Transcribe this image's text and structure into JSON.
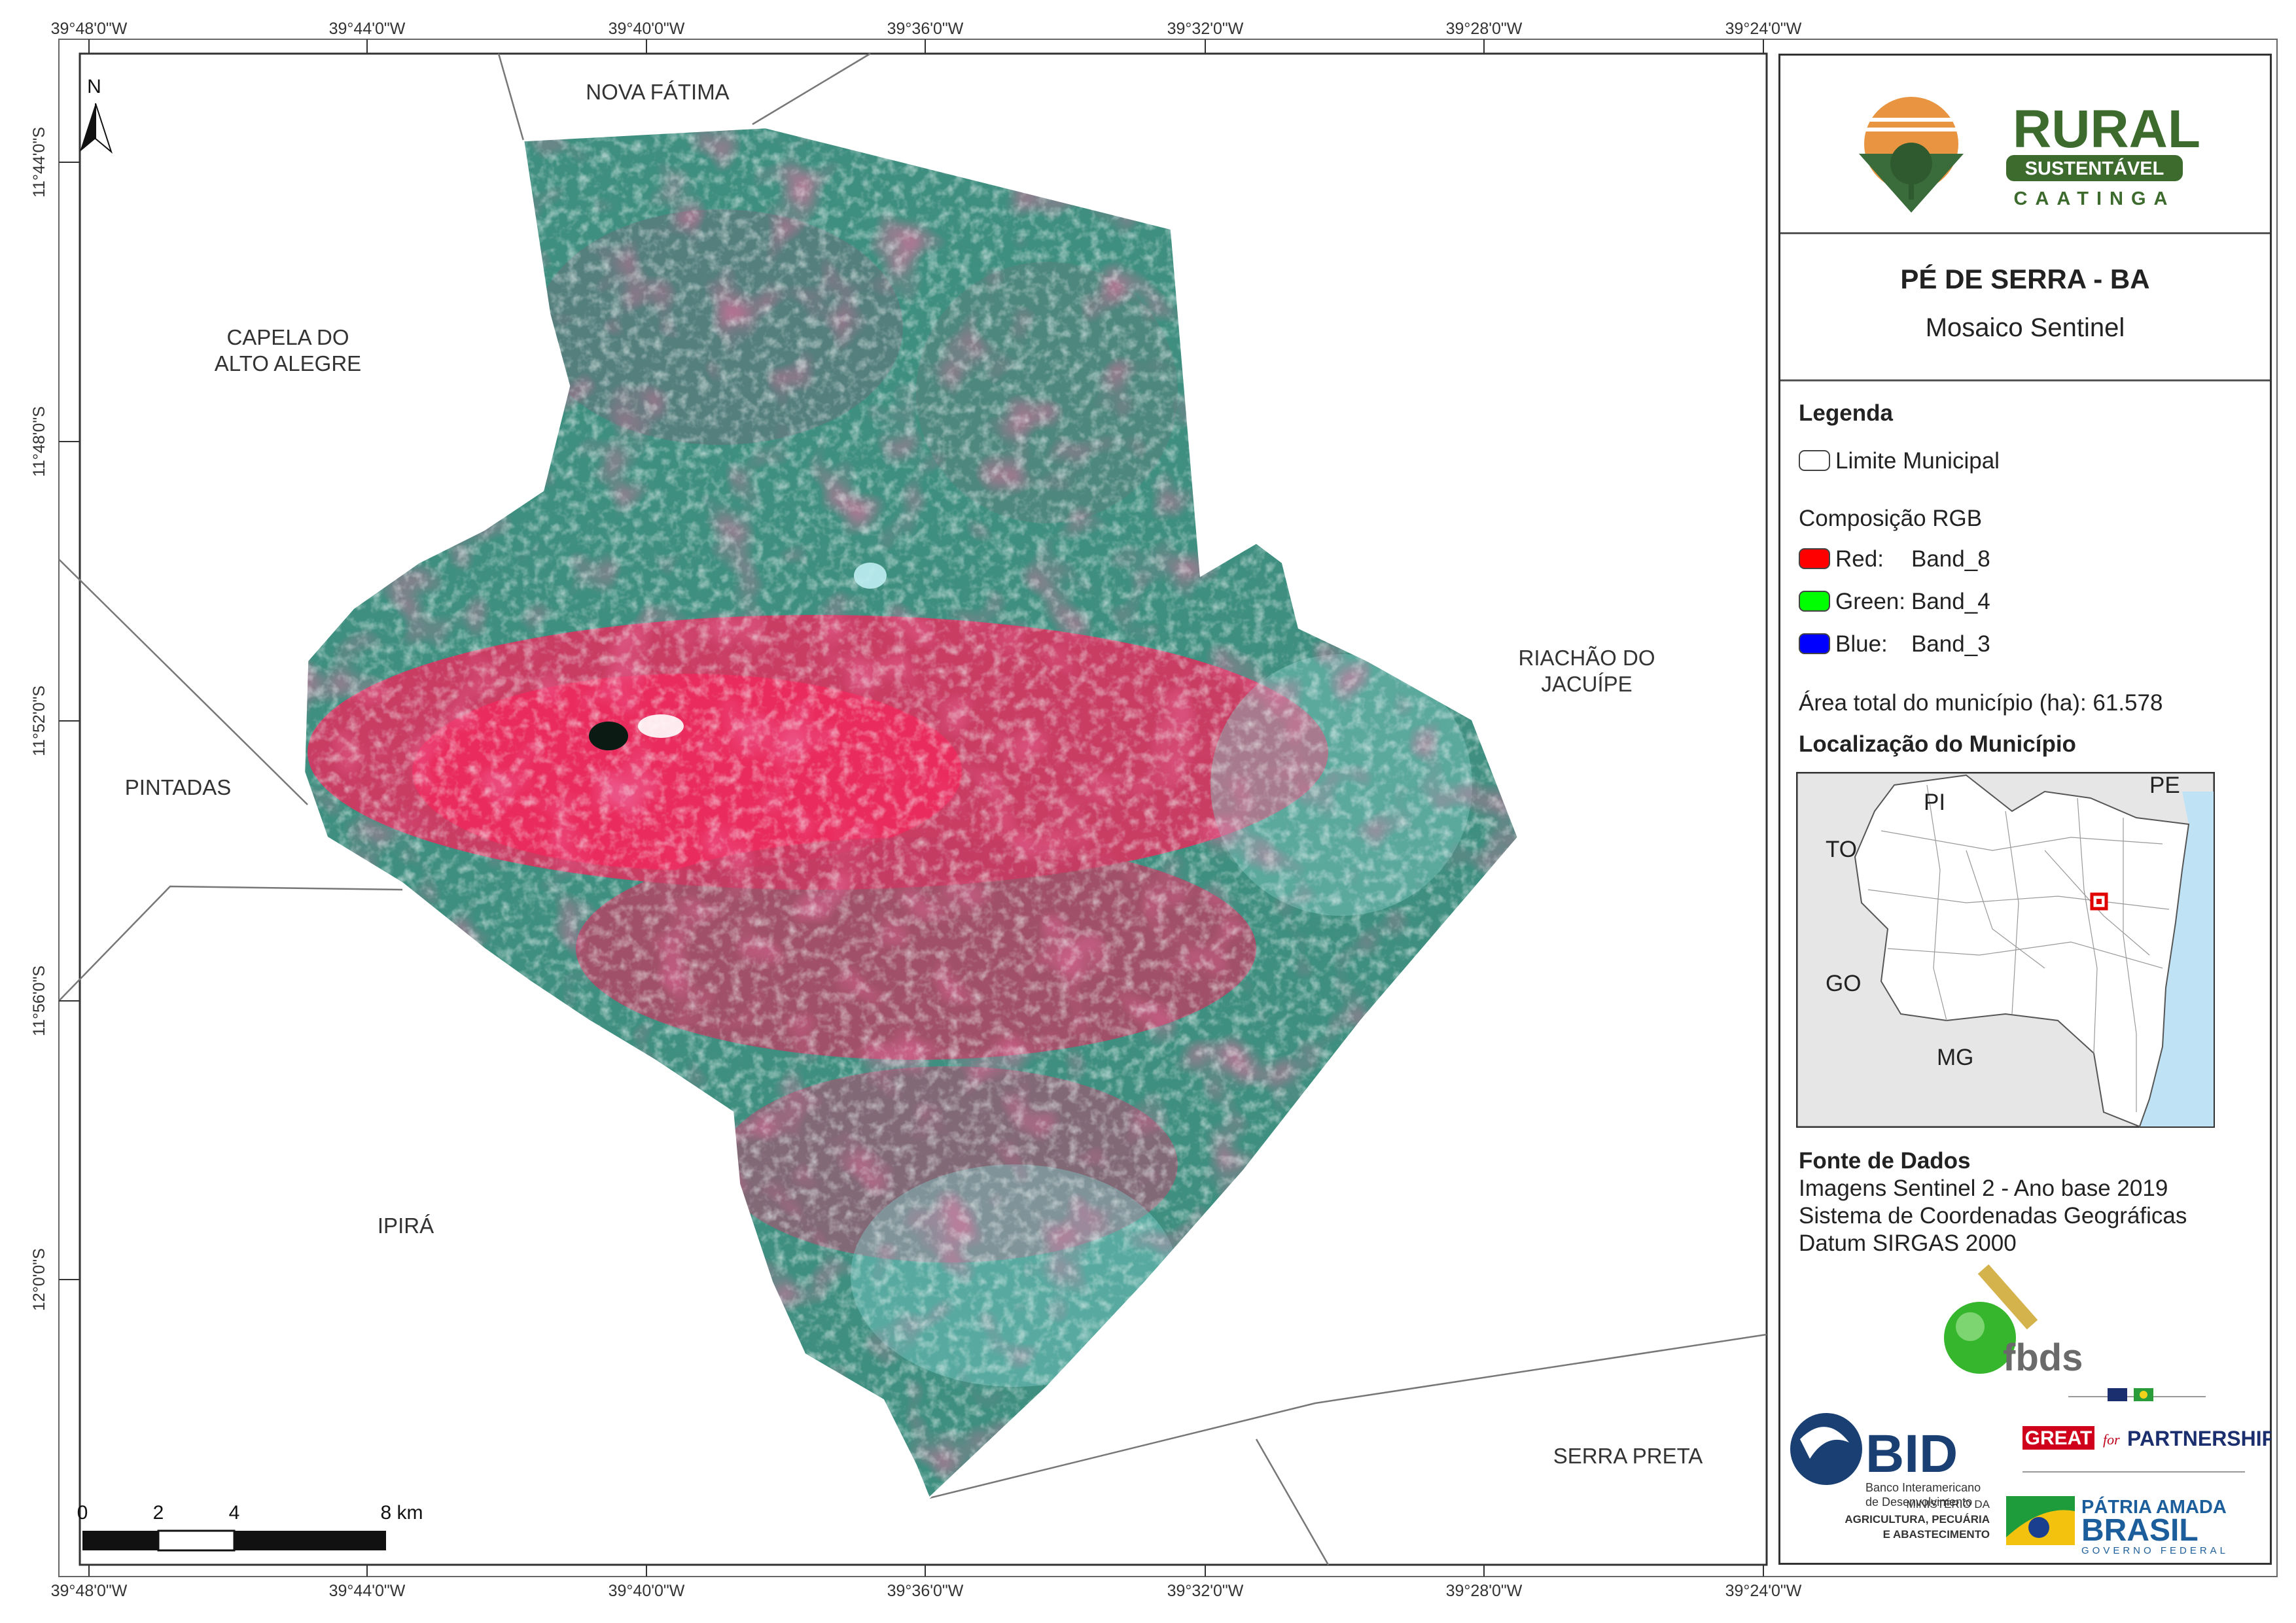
{
  "lon_ticks": [
    "39°48'0\"W",
    "39°44'0\"W",
    "39°40'0\"W",
    "39°36'0\"W",
    "39°32'0\"W",
    "39°28'0\"W",
    "39°24'0\"W"
  ],
  "lat_ticks": [
    "11°44'0\"S",
    "11°48'0\"S",
    "11°52'0\"S",
    "11°56'0\"S",
    "12°0'0\"S"
  ],
  "north_label": "N",
  "neighbors": {
    "nova_fatima": "NOVA FÁTIMA",
    "capela_1": "CAPELA DO",
    "capela_2": "ALTO ALEGRE",
    "riachao_1": "RIACHÃO DO",
    "riachao_2": "JACUÍPE",
    "pintadas": "PINTADAS",
    "ipira": "IPIRÁ",
    "serra_preta": "SERRA PRETA"
  },
  "scale_bar": {
    "labels": [
      "0",
      "2",
      "4",
      "8 km"
    ],
    "divisions": [
      0,
      2,
      4,
      8
    ]
  },
  "logos": {
    "rural": "RURAL",
    "sustentavel": "SUSTENTÁVEL",
    "caatinga": "CAATINGA",
    "fbds": "fbds",
    "bid": "BID",
    "bid_sub_1": "Banco Interamericano",
    "bid_sub_2": "de Desenvolvimento",
    "great_1": "GREAT",
    "great_2": "for",
    "great_3": "PARTNERSHIP",
    "ministerio_1": "MINISTÉRIO DA",
    "ministerio_2": "AGRICULTURA, PECUÁRIA",
    "ministerio_3": "E ABASTECIMENTO",
    "patria_1": "PÁTRIA AMADA",
    "patria_2": "BRASIL",
    "patria_3": "GOVERNO FEDERAL"
  },
  "panel": {
    "title": "PÉ DE SERRA - BA",
    "subtitle": "Mosaico Sentinel",
    "legend_heading": "Legenda",
    "limite": "Limite Municipal",
    "rgb_heading": "Composição RGB",
    "bands": [
      {
        "label": "Red:",
        "value": "Band_8",
        "color": "#ff0000"
      },
      {
        "label": "Green:",
        "value": "Band_4",
        "color": "#00ff00"
      },
      {
        "label": "Blue:",
        "value": "Band_3",
        "color": "#0000ff"
      }
    ],
    "area": "Área total do município (ha): 61.578",
    "loc_heading": "Localização do Município",
    "inset_labels": {
      "pi": "PI",
      "pe": "PE",
      "to": "TO",
      "go": "GO",
      "mg": "MG"
    },
    "fonte_heading": "Fonte de Dados",
    "fonte_lines": [
      "Imagens Sentinel 2 - Ano base 2019",
      "Sistema de Coordenadas Geográficas",
      "Datum SIRGAS 2000"
    ]
  }
}
